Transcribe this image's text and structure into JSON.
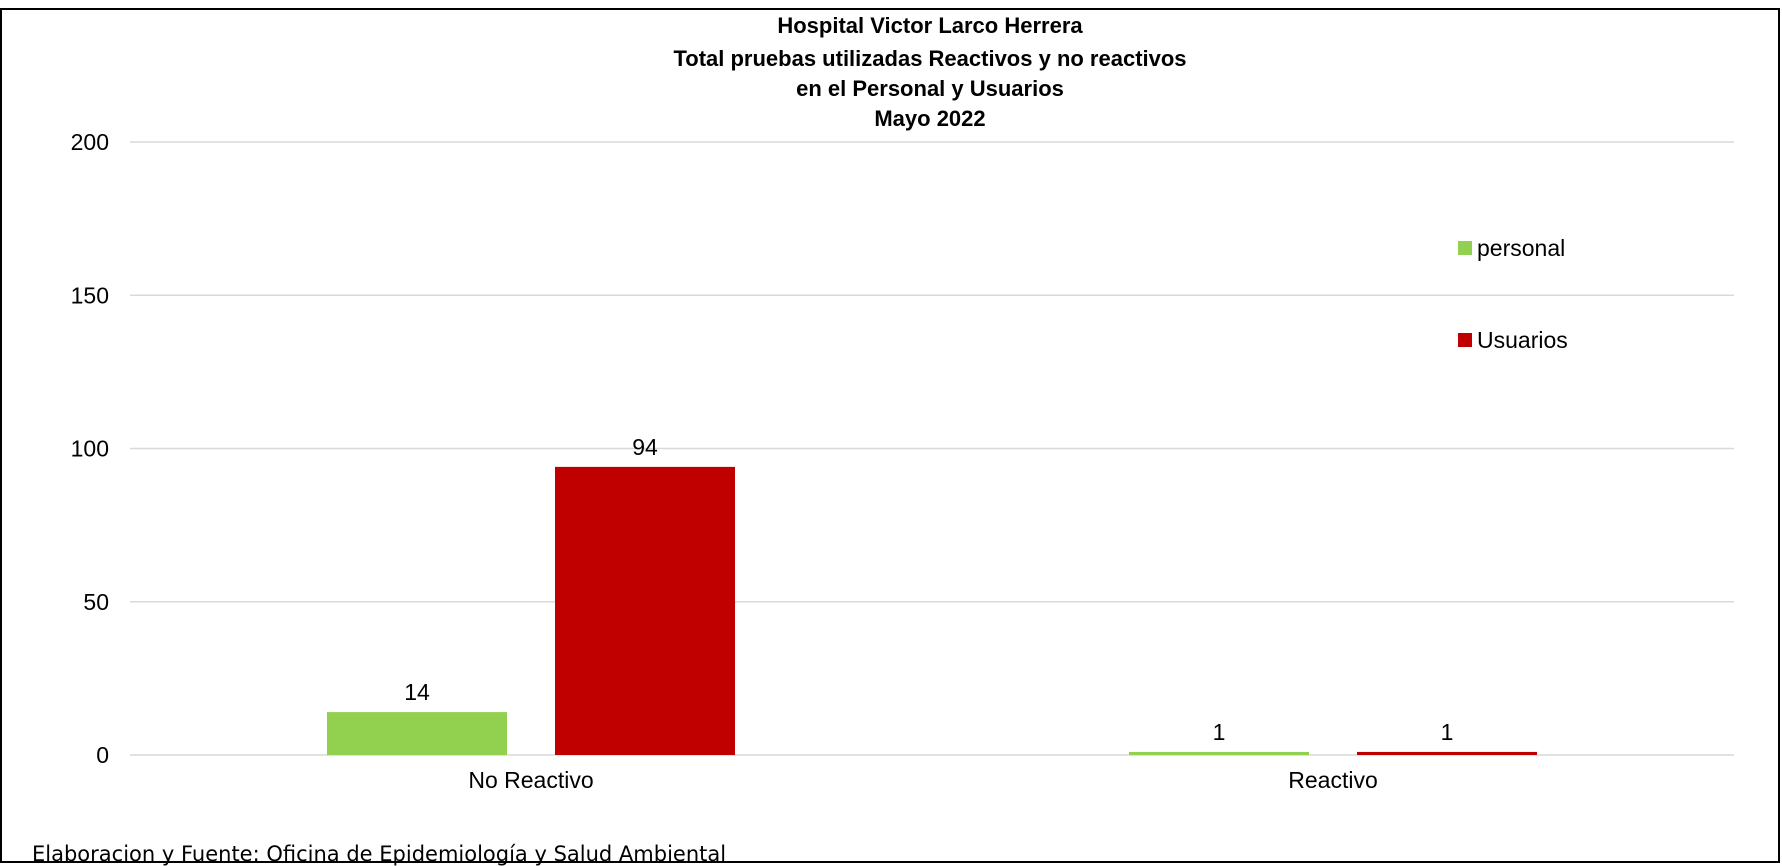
{
  "source_note": "Elaboracion y Fuente: Oficina de Epidemiología y Salud Ambiental",
  "colors": {
    "personal": "#92d050",
    "usuarios": "#c00000",
    "grid": "#d9d9d9",
    "frame": "#000000"
  },
  "chart_data": {
    "type": "bar",
    "title_lines": [
      "Hospital Victor Larco Herrera",
      "Total pruebas utilizadas Reactivos y no reactivos",
      "en el Personal y Usuarios",
      "Mayo 2022"
    ],
    "xlabel": "",
    "ylabel": "",
    "categories": [
      "No Reactivo",
      "Reactivo"
    ],
    "series": [
      {
        "name": "personal",
        "values": [
          14,
          1
        ]
      },
      {
        "name": "Usuarios",
        "values": [
          94,
          1
        ]
      }
    ],
    "ylim": [
      0,
      200
    ],
    "yticks": [
      0,
      50,
      100,
      150,
      200
    ],
    "grid": true,
    "legend_position": "right",
    "data_labels": true
  }
}
